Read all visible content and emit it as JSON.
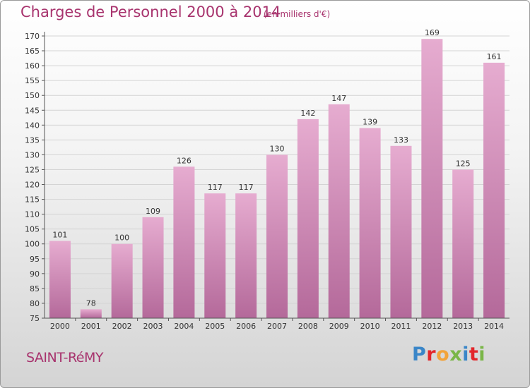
{
  "header": {
    "title": "Charges de Personnel 2000 à 2014",
    "subtitle": "(en milliers d'€)"
  },
  "footer": {
    "place": "SAINT-RéMY",
    "logo": "Proxiti"
  },
  "colors": {
    "bar_top": "#e6acd0",
    "bar_bottom": "#b4699a",
    "text_accent": "#a8346e"
  },
  "chart_data": {
    "type": "bar",
    "title": "Charges de Personnel 2000 à 2014",
    "subtitle": "(en milliers d'€)",
    "xlabel": "",
    "ylabel": "",
    "categories": [
      "2000",
      "2001",
      "2002",
      "2003",
      "2004",
      "2005",
      "2006",
      "2007",
      "2008",
      "2009",
      "2010",
      "2011",
      "2012",
      "2013",
      "2014"
    ],
    "values": [
      101,
      78,
      100,
      109,
      126,
      117,
      117,
      130,
      142,
      147,
      139,
      133,
      169,
      125,
      161
    ],
    "data_labels": [
      "101",
      "78",
      "100",
      "109",
      "126",
      "117",
      "117",
      "130",
      "142",
      "147",
      "139",
      "133",
      "169",
      "125",
      "161"
    ],
    "ylim": [
      75,
      170
    ],
    "yticks": [
      75,
      80,
      85,
      90,
      95,
      100,
      105,
      110,
      115,
      120,
      125,
      130,
      135,
      140,
      145,
      150,
      155,
      160,
      165,
      170
    ],
    "grid": true
  }
}
